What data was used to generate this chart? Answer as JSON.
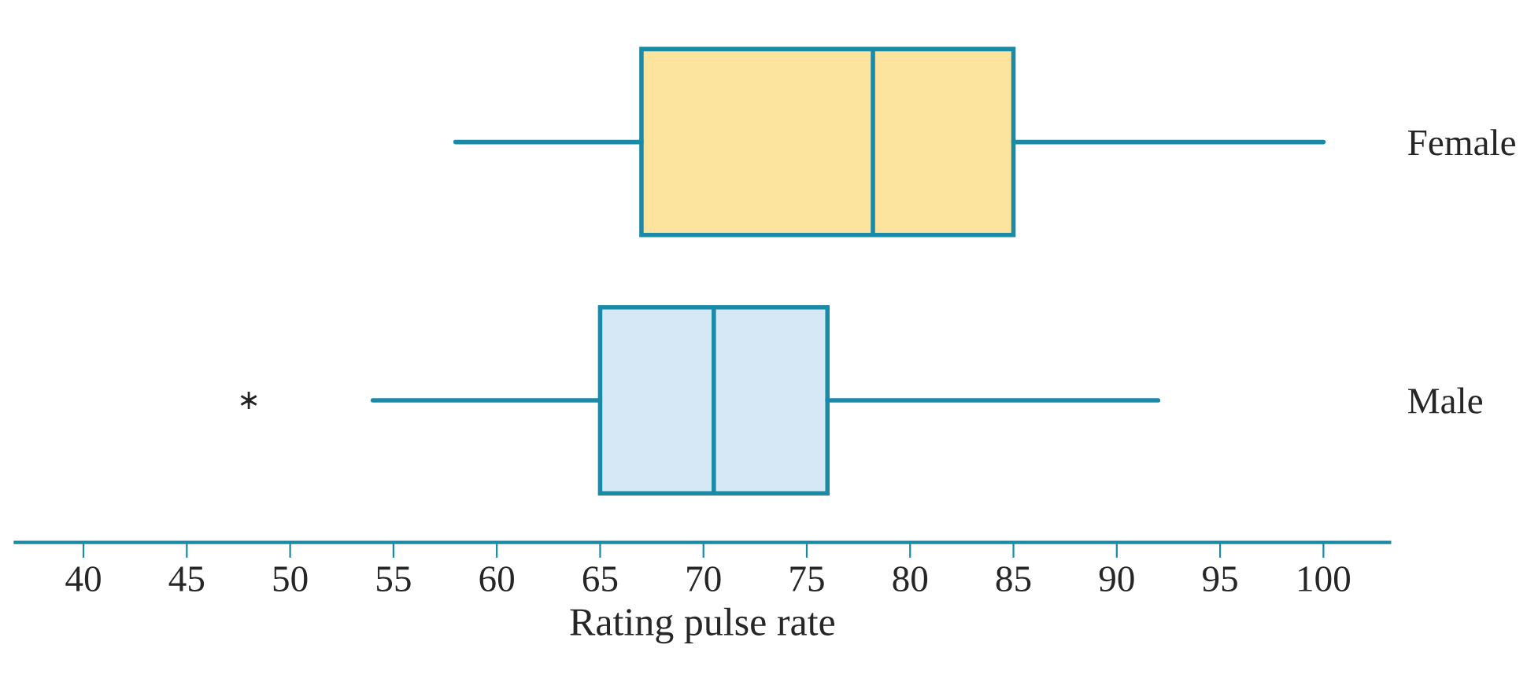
{
  "chart_data": {
    "type": "box",
    "orientation": "horizontal",
    "xlabel": "Rating pulse rate",
    "categories": [
      "Female",
      "Male"
    ],
    "colors": [
      "#fde49e",
      "#d6e7f5"
    ],
    "boxes": [
      {
        "low": 58,
        "q1": 67,
        "median": 78.2,
        "q3": 85,
        "high": 100
      },
      {
        "low": 54,
        "q1": 65,
        "median": 70.5,
        "q3": 76,
        "high": 92,
        "outliers": [
          48
        ]
      }
    ],
    "xlim": [
      36.7,
      103.2
    ],
    "xticks": [
      40,
      45,
      50,
      55,
      60,
      65,
      70,
      75,
      80,
      85,
      90,
      95,
      100
    ],
    "grid": false,
    "legend": false
  }
}
